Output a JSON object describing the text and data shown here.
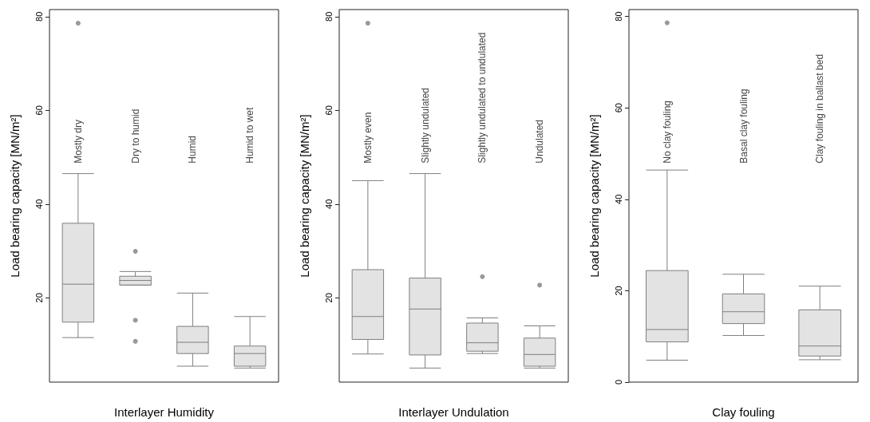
{
  "chart_data": [
    {
      "type": "box",
      "xlabel": "Interlayer Humidity",
      "ylabel": "Load bearing capacity [MN/m²]",
      "categories": [
        "Mostly dry",
        "Dry to humid",
        "Humid",
        "Humid to wet"
      ],
      "ylim": [
        2,
        81.5
      ],
      "yticks": [
        20,
        40,
        60,
        80
      ],
      "grid": false,
      "color": "#e3e3e3",
      "boxes": [
        {
          "low": 11.5,
          "q1": 14.8,
          "median": 22.9,
          "q3": 35.9,
          "high": 46.5,
          "outliers": [
            78.6
          ]
        },
        {
          "low": 22.7,
          "q1": 22.7,
          "median": 23.7,
          "q3": 24.6,
          "high": 25.6,
          "outliers": [
            29.9,
            15.2,
            10.7
          ]
        },
        {
          "low": 5.4,
          "q1": 8.1,
          "median": 10.5,
          "q3": 13.9,
          "high": 21.0
        },
        {
          "low": 5.0,
          "q1": 5.4,
          "median": 8.1,
          "q3": 9.7,
          "high": 16.0
        }
      ]
    },
    {
      "type": "box",
      "xlabel": "Interlayer Undulation",
      "ylabel": "Load bearing capacity [MN/m²]",
      "categories": [
        "Mostly even",
        "Slightly undulated",
        "Slightly undulated to undulated",
        "Undulated"
      ],
      "ylim": [
        2,
        81.5
      ],
      "yticks": [
        20,
        40,
        60,
        80
      ],
      "grid": false,
      "color": "#e3e3e3",
      "boxes": [
        {
          "low": 8.0,
          "q1": 11.1,
          "median": 16.0,
          "q3": 26.0,
          "high": 45.0,
          "outliers": [
            78.6
          ]
        },
        {
          "low": 5.0,
          "q1": 7.8,
          "median": 17.6,
          "q3": 24.2,
          "high": 46.5
        },
        {
          "low": 8.1,
          "q1": 8.6,
          "median": 10.4,
          "q3": 14.6,
          "high": 15.7,
          "outliers": [
            24.5
          ]
        },
        {
          "low": 5.0,
          "q1": 5.4,
          "median": 7.9,
          "q3": 11.4,
          "high": 14.0,
          "outliers": [
            22.7
          ]
        }
      ]
    },
    {
      "type": "box",
      "xlabel": "Clay fouling",
      "ylabel": "Load bearing capacity [MN/m²]",
      "categories": [
        "No clay fouling",
        "Basal clay fouling",
        "Clay fouling in ballast bed"
      ],
      "ylim": [
        0,
        81.5
      ],
      "yticks": [
        0,
        20,
        40,
        60,
        80
      ],
      "grid": false,
      "color": "#e3e3e3",
      "boxes": [
        {
          "low": 4.8,
          "q1": 8.8,
          "median": 11.5,
          "q3": 24.4,
          "high": 46.4,
          "outliers": [
            78.6
          ]
        },
        {
          "low": 10.2,
          "q1": 12.8,
          "median": 15.4,
          "q3": 19.3,
          "high": 23.6
        },
        {
          "low": 4.9,
          "q1": 5.7,
          "median": 7.9,
          "q3": 15.8,
          "high": 21.0
        }
      ]
    }
  ]
}
